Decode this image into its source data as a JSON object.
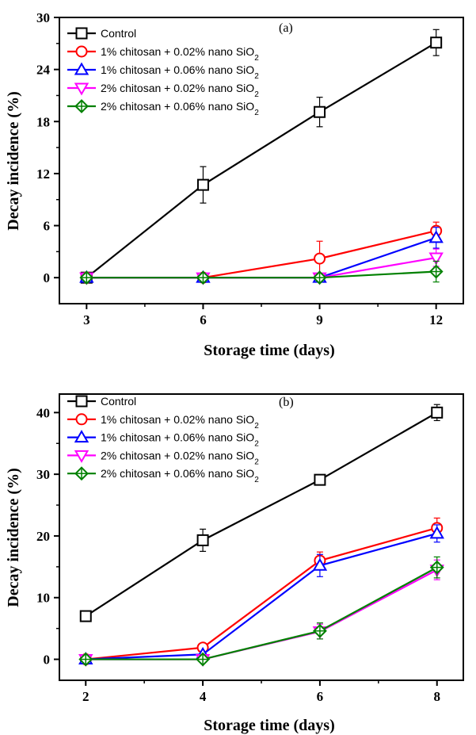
{
  "chart_data": [
    {
      "type": "line",
      "panel_label": "(a)",
      "xlabel": "Storage time (days)",
      "ylabel": "Decay incidence (%)",
      "x": [
        3,
        6,
        9,
        12
      ],
      "xticks": [
        "3",
        "6",
        "9",
        "12"
      ],
      "yticks": [
        "0",
        "6",
        "12",
        "18",
        "24",
        "30"
      ],
      "xlim": [
        2.3,
        12.7
      ],
      "ylim": [
        -3,
        30
      ],
      "legend_position": "top-left",
      "series": [
        {
          "name": "Control",
          "base": "Control",
          "sub": "",
          "color": "#000000",
          "marker": "square",
          "values": [
            0,
            10.7,
            19.1,
            27.1
          ],
          "errors": [
            0,
            2.1,
            1.7,
            1.5
          ]
        },
        {
          "name": "1% chitosan + 0.02% nano SiO2",
          "base": "1% chitosan + 0.02% nano SiO",
          "sub": "2",
          "color": "#ff0000",
          "marker": "circle",
          "values": [
            0,
            0,
            2.2,
            5.4
          ],
          "errors": [
            0,
            0,
            2.0,
            1.0
          ]
        },
        {
          "name": "1% chitosan + 0.06% nano SiO2",
          "base": "1% chitosan + 0.06% nano SiO",
          "sub": "2",
          "color": "#0000ff",
          "marker": "triangle-up",
          "values": [
            0,
            0,
            0,
            4.6
          ],
          "errors": [
            0,
            0,
            0,
            1.2
          ]
        },
        {
          "name": "2% chitosan + 0.02% nano SiO2",
          "base": "2% chitosan + 0.02% nano SiO",
          "sub": "2",
          "color": "#ff00ff",
          "marker": "triangle-down",
          "values": [
            0,
            0,
            0,
            2.3
          ],
          "errors": [
            0,
            0,
            0,
            1.0
          ]
        },
        {
          "name": "2% chitosan + 0.06% nano SiO2",
          "base": "2% chitosan + 0.06% nano SiO",
          "sub": "2",
          "color": "#008000",
          "marker": "diamond",
          "values": [
            0,
            0,
            0,
            0.7
          ],
          "errors": [
            0,
            0,
            0,
            1.2
          ]
        }
      ]
    },
    {
      "type": "line",
      "panel_label": "(b)",
      "xlabel": "Storage time (days)",
      "ylabel": "Decay incidence (%)",
      "x": [
        2,
        4,
        6,
        8
      ],
      "xticks": [
        "2",
        "4",
        "6",
        "8"
      ],
      "yticks": [
        "0",
        "10",
        "20",
        "30",
        "40"
      ],
      "xlim": [
        1.55,
        8.45
      ],
      "ylim": [
        -3.4,
        43
      ],
      "legend_position": "top-left",
      "series": [
        {
          "name": "Control",
          "base": "Control",
          "sub": "",
          "color": "#000000",
          "marker": "square",
          "values": [
            7,
            19.3,
            29.1,
            40
          ],
          "errors": [
            0.3,
            1.8,
            0.4,
            1.3
          ]
        },
        {
          "name": "1% chitosan + 0.02% nano SiO2",
          "base": "1% chitosan + 0.02% nano SiO",
          "sub": "2",
          "color": "#ff0000",
          "marker": "circle",
          "values": [
            0,
            1.9,
            16,
            21.3
          ],
          "errors": [
            0,
            0.3,
            1.4,
            1.6
          ]
        },
        {
          "name": "1% chitosan + 0.06% nano SiO2",
          "base": "1% chitosan + 0.06% nano SiO",
          "sub": "2",
          "color": "#0000ff",
          "marker": "triangle-up",
          "values": [
            0,
            0.8,
            15.2,
            20.4
          ],
          "errors": [
            0,
            0.3,
            1.8,
            1.4
          ]
        },
        {
          "name": "2% chitosan + 0.02% nano SiO2",
          "base": "2% chitosan + 0.02% nano SiO",
          "sub": "2",
          "color": "#ff00ff",
          "marker": "triangle-down",
          "values": [
            0,
            0,
            4.5,
            14.5
          ],
          "errors": [
            0,
            0,
            1.2,
            1.6
          ]
        },
        {
          "name": "2% chitosan + 0.06% nano SiO2",
          "base": "2% chitosan + 0.06% nano SiO",
          "sub": "2",
          "color": "#008000",
          "marker": "diamond",
          "values": [
            0,
            0,
            4.6,
            14.9
          ],
          "errors": [
            0,
            0,
            1.3,
            1.7
          ]
        }
      ]
    }
  ]
}
